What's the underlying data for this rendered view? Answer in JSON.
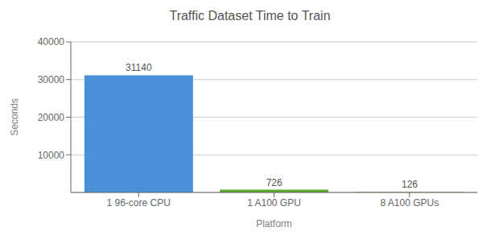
{
  "chart_data": {
    "type": "bar",
    "title": "Traffic Dataset Time to Train",
    "xlabel": "Platform",
    "ylabel": "Seconds",
    "categories": [
      "1 96-core CPU",
      "1 A100 GPU",
      "8 A100 GPUs"
    ],
    "values": [
      31140,
      726,
      126
    ],
    "colors": [
      "#4A90D9",
      "#5AAB2E",
      "#5AAB2E"
    ],
    "ylim": [
      0,
      40000
    ],
    "yticks": [
      10000,
      20000,
      30000,
      40000
    ],
    "grid": true,
    "data_labels": true
  }
}
